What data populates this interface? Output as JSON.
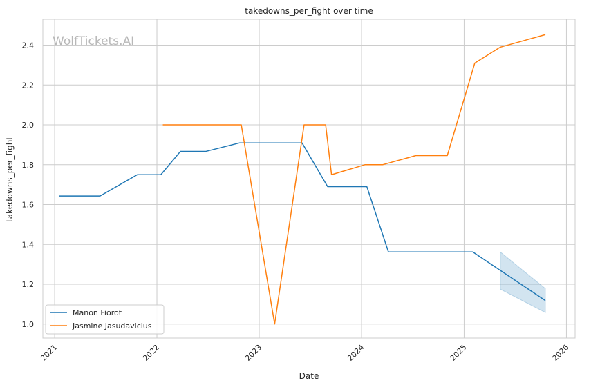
{
  "chart_data": {
    "type": "line",
    "title": "takedowns_per_fight over time",
    "xlabel": "Date",
    "ylabel": "takedowns_per_fight",
    "watermark": "WolfTickets.AI",
    "x_ticks": [
      "2021",
      "2022",
      "2023",
      "2024",
      "2025",
      "2026"
    ],
    "y_ticks": [
      "1.0",
      "1.2",
      "1.4",
      "1.6",
      "1.8",
      "2.0",
      "2.2",
      "2.4"
    ],
    "xlim": [
      "2020-11-20",
      "2026-02-01"
    ],
    "ylim": [
      0.93,
      2.53
    ],
    "grid": true,
    "legend_position": "lower-left",
    "series": [
      {
        "name": "Manon Fiorot",
        "color": "#1f77b4",
        "points": [
          {
            "x": "2021-01-16",
            "y": 1.643
          },
          {
            "x": "2021-06-12",
            "y": 1.643
          },
          {
            "x": "2021-10-23",
            "y": 1.75
          },
          {
            "x": "2022-01-15",
            "y": 1.75
          },
          {
            "x": "2022-03-26",
            "y": 1.867
          },
          {
            "x": "2022-06-25",
            "y": 1.867
          },
          {
            "x": "2022-10-22",
            "y": 1.909
          },
          {
            "x": "2023-06-03",
            "y": 1.909
          },
          {
            "x": "2023-09-02",
            "y": 1.69
          },
          {
            "x": "2024-01-20",
            "y": 1.69
          },
          {
            "x": "2024-04-06",
            "y": 1.362
          },
          {
            "x": "2025-02-01",
            "y": 1.362
          },
          {
            "x": "2025-10-18",
            "y": 1.118
          }
        ],
        "confidence_band": [
          {
            "x": "2025-05-10",
            "lower": 1.175,
            "upper": 1.362
          },
          {
            "x": "2025-10-18",
            "lower": 1.058,
            "upper": 1.178
          }
        ]
      },
      {
        "name": "Jasmine Jasudavicius",
        "color": "#ff7f0e",
        "points": [
          {
            "x": "2022-01-22",
            "y": 2.0
          },
          {
            "x": "2022-10-29",
            "y": 2.0
          },
          {
            "x": "2023-02-25",
            "y": 1.0
          },
          {
            "x": "2023-06-10",
            "y": 2.0
          },
          {
            "x": "2023-08-26",
            "y": 2.0
          },
          {
            "x": "2023-09-16",
            "y": 1.75
          },
          {
            "x": "2024-01-13",
            "y": 1.8
          },
          {
            "x": "2024-03-16",
            "y": 1.8
          },
          {
            "x": "2024-07-13",
            "y": 1.846
          },
          {
            "x": "2024-11-02",
            "y": 1.846
          },
          {
            "x": "2025-02-08",
            "y": 2.31
          },
          {
            "x": "2025-05-10",
            "y": 2.39
          },
          {
            "x": "2025-10-18",
            "y": 2.453
          }
        ]
      }
    ]
  }
}
